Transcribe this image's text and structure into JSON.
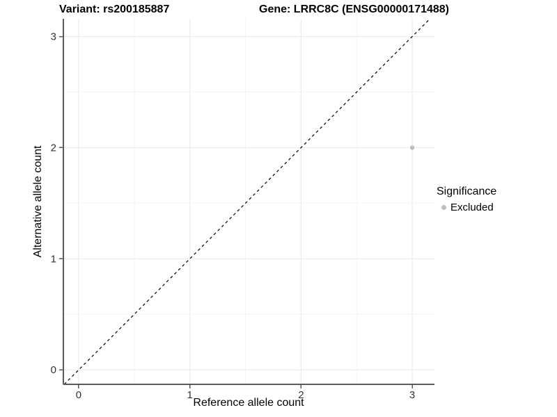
{
  "header": {
    "variant_title": "Variant: rs200185887",
    "gene_title": "Gene: LRRC8C (ENSG00000171488)"
  },
  "chart_data": {
    "type": "scatter",
    "xlabel": "Reference allele count",
    "ylabel": "Alternative allele count",
    "xlim": [
      -0.1375,
      3.2
    ],
    "ylim": [
      -0.13,
      3.16
    ],
    "xticks": [
      0,
      1,
      2,
      3
    ],
    "yticks": [
      0,
      1,
      2,
      3
    ],
    "x_minor_ticks": [
      0.5,
      1.5,
      2.5
    ],
    "y_minor_ticks": [
      0.5,
      1.5,
      2.5
    ],
    "grid": "major+minor",
    "points": [
      {
        "x": 3,
        "y": 2,
        "series": "Excluded"
      }
    ],
    "reference_line": {
      "slope": 1,
      "intercept": 0,
      "style": "dashed",
      "color": "#000000"
    },
    "legend": {
      "title": "Significance",
      "position": "right",
      "entries": [
        {
          "label": "Excluded",
          "color": "#bebebe",
          "marker": "circle"
        }
      ]
    },
    "style": {
      "point_color": "#bebebe",
      "point_radius": 3.2,
      "axis_color": "#5a5a5a",
      "tick_label_color": "#333333",
      "grid_major_color": "#ececec",
      "grid_minor_color": "#f4f4f4"
    }
  }
}
